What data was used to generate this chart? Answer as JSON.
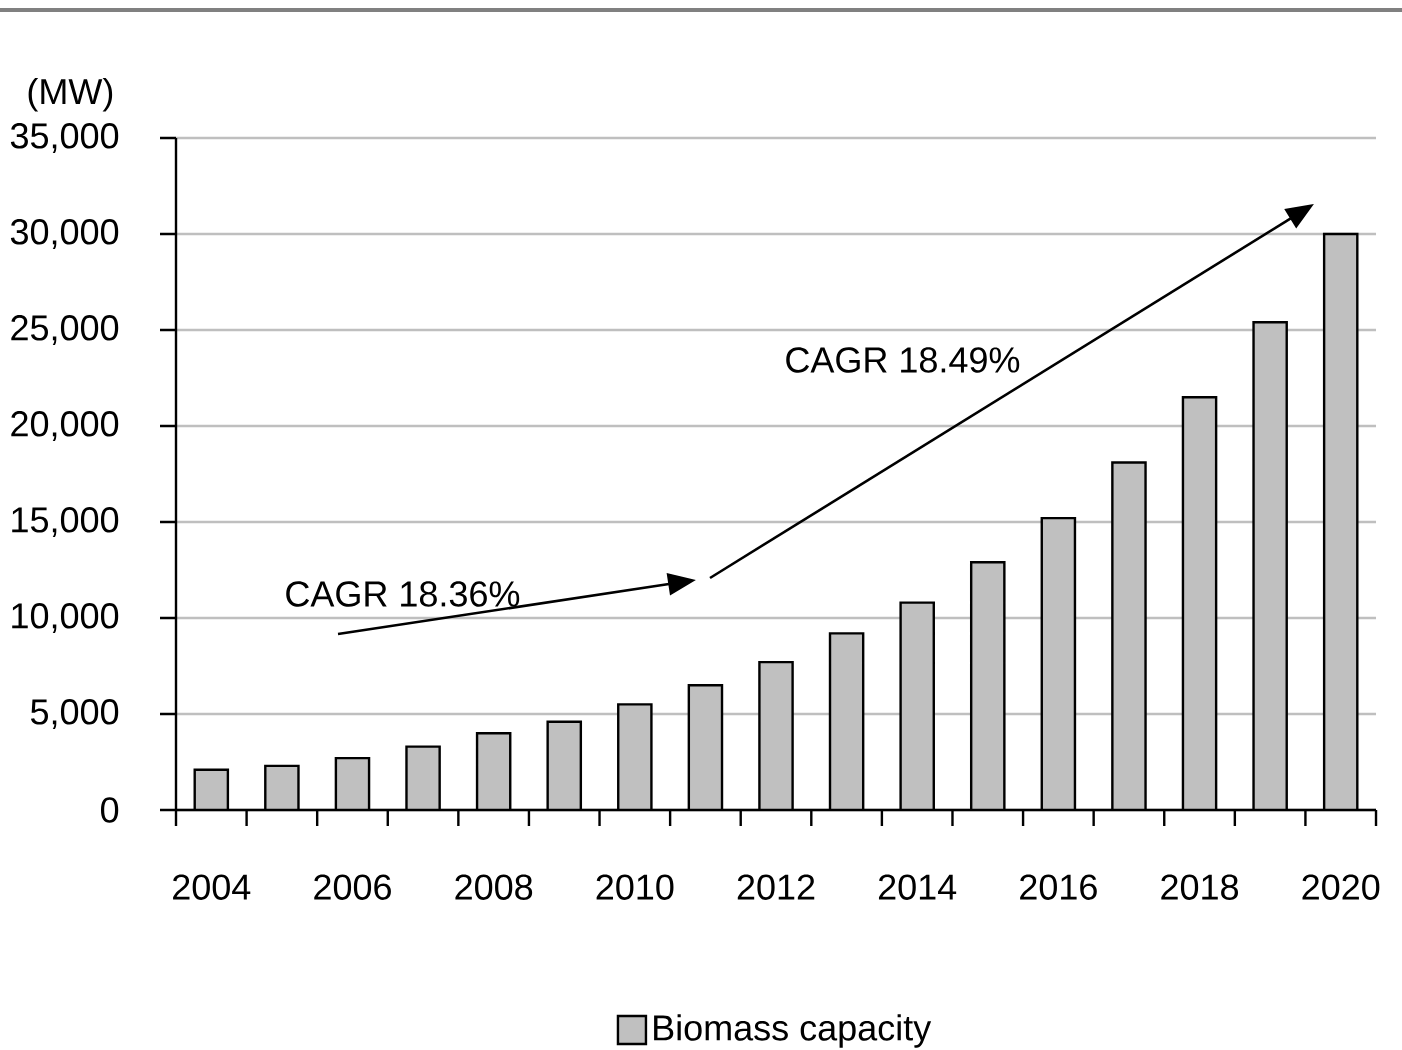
{
  "chart_data": {
    "type": "bar",
    "ylabel": "(MW)",
    "categories": [
      "2004",
      null,
      "2006",
      null,
      "2008",
      null,
      "2010",
      null,
      "2012",
      null,
      "2014",
      null,
      "2016",
      null,
      "2018",
      null,
      "2020"
    ],
    "series": [
      {
        "name": "Biomass capacity",
        "color": "#c0c0c0",
        "values": [
          2100,
          2300,
          2700,
          3300,
          4000,
          4600,
          5500,
          6500,
          7700,
          9200,
          10800,
          12900,
          15200,
          18100,
          21500,
          25400,
          30000
        ]
      }
    ],
    "ylim": [
      0,
      35000
    ],
    "yticks": [
      0,
      {
        "value": 5000,
        "label": "5,000"
      },
      {
        "value": 10000,
        "label": "10,000"
      },
      {
        "value": 15000,
        "label": "15,000"
      },
      {
        "value": 20000,
        "label": "20,000"
      },
      {
        "value": 25000,
        "label": "25,000"
      },
      {
        "value": 30000,
        "label": "30,000"
      },
      {
        "value": 35000,
        "label": "35,000"
      }
    ],
    "grid": "y",
    "legend": "bottom",
    "annotations": [
      "CAGR 18.36%",
      "CAGR 18.49%"
    ]
  }
}
